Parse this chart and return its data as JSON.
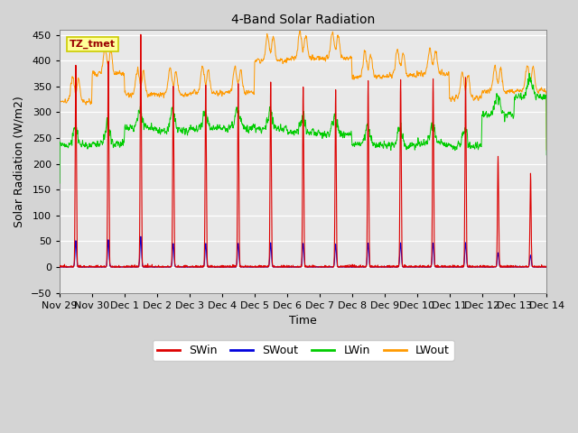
{
  "title": "4-Band Solar Radiation",
  "xlabel": "Time",
  "ylabel": "Solar Radiation (W/m2)",
  "ylim": [
    -50,
    460
  ],
  "background_color": "#e8e8e8",
  "annotation_text": "TZ_tmet",
  "annotation_box_color": "#ffff99",
  "annotation_border_color": "#cccc00",
  "annotation_text_color": "#990000",
  "colors": {
    "SWin": "#dd0000",
    "SWout": "#0000dd",
    "LWin": "#00cc00",
    "LWout": "#ff9900"
  },
  "tick_labels": [
    "Nov 29",
    "Nov 30",
    "Dec 1",
    "Dec 2",
    "Dec 3",
    "Dec 4",
    "Dec 5",
    "Dec 6",
    "Dec 7",
    "Dec 8",
    "Dec 9",
    "Dec 10",
    "Dec 11",
    "Dec 12",
    "Dec 13",
    "Dec 14"
  ],
  "tick_positions": [
    0,
    1,
    2,
    3,
    4,
    5,
    6,
    7,
    8,
    9,
    10,
    11,
    12,
    13,
    14,
    15
  ],
  "yticks": [
    -50,
    0,
    50,
    100,
    150,
    200,
    250,
    300,
    350,
    400,
    450
  ],
  "legend_labels": [
    "SWin",
    "SWout",
    "LWin",
    "LWout"
  ],
  "SWin_amplitudes": [
    390,
    400,
    450,
    350,
    355,
    355,
    360,
    350,
    345,
    360,
    365,
    365,
    365,
    215,
    180
  ],
  "LWin_bases": [
    235,
    240,
    270,
    265,
    268,
    270,
    268,
    260,
    258,
    237,
    235,
    240,
    235,
    295,
    330
  ],
  "LWout_bases": [
    320,
    375,
    335,
    335,
    338,
    338,
    400,
    405,
    405,
    368,
    372,
    375,
    328,
    340,
    342
  ]
}
